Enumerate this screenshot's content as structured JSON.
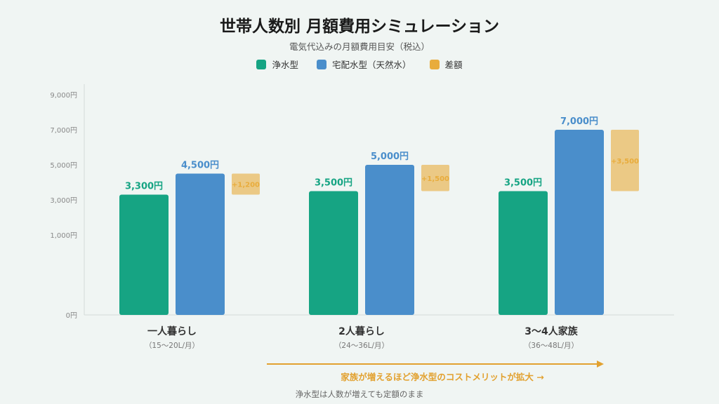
{
  "title": "世帯人数別 月額費用シミュレーション",
  "subtitle": "電気代込みの月額費用目安（税込）",
  "legend": [
    {
      "label": "浄水型",
      "color": "#16a483"
    },
    {
      "label": "宅配水型（天然水）",
      "color": "#4a8ecb"
    },
    {
      "label": "差額",
      "color": "#e8ac3c"
    }
  ],
  "chart_data": {
    "type": "bar",
    "categories": [
      "一人暮らし",
      "2人暮らし",
      "3〜4人家族"
    ],
    "category_subtitles": [
      "（15〜20L/月）",
      "（24〜36L/月）",
      "（36〜48L/月）"
    ],
    "series": [
      {
        "name": "浄水型",
        "values": [
          3300,
          3500,
          3500
        ],
        "labels": [
          "3,300円",
          "3,500円",
          "3,500円"
        ],
        "color": "#16a483"
      },
      {
        "name": "宅配水型（天然水）",
        "values": [
          4500,
          5000,
          7000
        ],
        "labels": [
          "4,500円",
          "5,000円",
          "7,000円"
        ],
        "color": "#4a8ecb"
      }
    ],
    "difference": {
      "name": "差額",
      "values": [
        1200,
        1500,
        3500
      ],
      "labels": [
        "+1,200",
        "+1,500",
        "+3,500"
      ],
      "color": "#e8ac3c"
    },
    "y_ticks": [
      {
        "value": 0,
        "label": "0円"
      },
      {
        "value": 1000,
        "label": "1,000円"
      },
      {
        "value": 3000,
        "label": "3,000円"
      },
      {
        "value": 5000,
        "label": "5,000円"
      },
      {
        "value": 7000,
        "label": "7,000円"
      },
      {
        "value": 9000,
        "label": "9,000円"
      }
    ],
    "ylim": [
      0,
      9000
    ],
    "grid": false,
    "legend_position": "top-center"
  },
  "annotation": "家族が増えるほど浄水型のコストメリットが拡大 →",
  "footnote": "浄水型は人数が増えても定額のまま"
}
